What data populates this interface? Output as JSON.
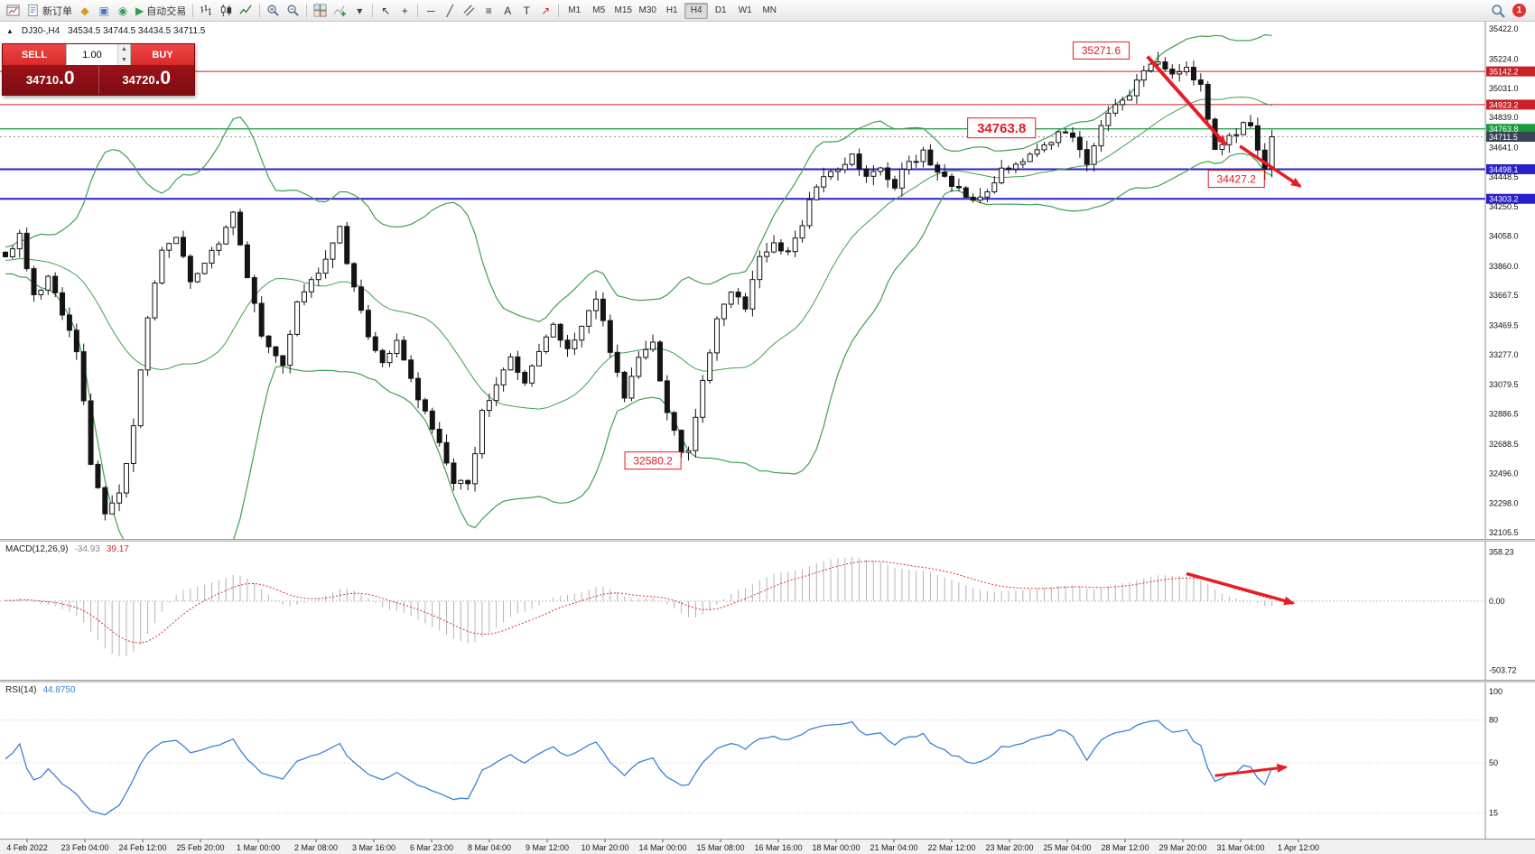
{
  "toolbar": {
    "buttons": [
      {
        "name": "chart-window-icon",
        "icon": "chart"
      },
      {
        "name": "new-order-button",
        "icon": "doc",
        "label": "新订单"
      },
      {
        "name": "market-watch-icon",
        "glyph": "◆",
        "color": "#d69a1e"
      },
      {
        "name": "data-window-icon",
        "glyph": "▣",
        "color": "#4a78c8"
      },
      {
        "name": "navigator-icon",
        "glyph": "◉",
        "color": "#3a9e5f"
      },
      {
        "name": "auto-trading-button",
        "glyph": "▶",
        "color": "#28a24c",
        "label": "自动交易"
      },
      {
        "separator": true
      },
      {
        "name": "bar-chart-icon",
        "icon": "bars"
      },
      {
        "name": "candlestick-chart-icon",
        "icon": "candles"
      },
      {
        "name": "line-chart-icon",
        "icon": "line"
      },
      {
        "separator": true
      },
      {
        "name": "zoom-in-icon",
        "icon": "zoomin"
      },
      {
        "name": "zoom-out-icon",
        "icon": "zoomout"
      },
      {
        "separator": true
      },
      {
        "name": "tile-windows-icon",
        "icon": "tile"
      },
      {
        "name": "indicators-icon",
        "icon": "indicators"
      },
      {
        "name": "indicators-dropdown-icon",
        "glyph": "▾",
        "color": "#444"
      },
      {
        "separator": true
      },
      {
        "name": "cursor-icon",
        "glyph": "↖",
        "color": "#333"
      },
      {
        "name": "crosshair-icon",
        "glyph": "+",
        "color": "#333"
      },
      {
        "separator": true
      },
      {
        "name": "horizontal-line-icon",
        "glyph": "─",
        "color": "#333"
      },
      {
        "name": "trendline-icon",
        "glyph": "╱",
        "color": "#333"
      },
      {
        "name": "channel-icon",
        "icon": "channel"
      },
      {
        "name": "fibonacci-icon",
        "glyph": "≡",
        "color": "#333"
      },
      {
        "name": "text-icon",
        "glyph": "A",
        "color": "#333"
      },
      {
        "name": "label-icon",
        "glyph": "T",
        "color": "#333"
      },
      {
        "name": "arrows-icon",
        "glyph": "↗",
        "color": "#c13333"
      },
      {
        "separator": true
      }
    ],
    "timeframes": [
      "M1",
      "M5",
      "M15",
      "M30",
      "H1",
      "H4",
      "D1",
      "W1",
      "MN"
    ],
    "active_timeframe": "H4",
    "notification_count": "1"
  },
  "chart": {
    "collapse_icon": "▲",
    "symbol_info": "DJ30-,H4",
    "ohlc_info": "34534.5 34744.5 34434.5 34711.5",
    "trade_panel": {
      "sell_label": "SELL",
      "buy_label": "BUY",
      "volume": "1.00",
      "sell_price": "34710.0",
      "buy_price": "34720.0"
    }
  },
  "chart_data": {
    "type": "candlestick",
    "symbol": "DJ30-",
    "period": "H4",
    "ylim": [
      32105.5,
      35422.0
    ],
    "num_candles": 179,
    "current_price": 34711.5,
    "price_axis_labels": [
      "35422.0",
      "35224.0",
      "35031.0",
      "34839.0",
      "34641.0",
      "34448.5",
      "34250.5",
      "34058.0",
      "33860.0",
      "33667.5",
      "33469.5",
      "33277.0",
      "33079.5",
      "32886.5",
      "32688.5",
      "32496.0",
      "32298.0",
      "32105.5"
    ],
    "price_tags": [
      {
        "value": "35142.2",
        "color": "#c92127"
      },
      {
        "value": "34923.2",
        "color": "#c92127"
      },
      {
        "value": "34763.8",
        "color": "#169a3a"
      },
      {
        "value": "34711.5",
        "color": "#3a4257"
      },
      {
        "value": "34498.1",
        "color": "#2a1fc8"
      },
      {
        "value": "34303.2",
        "color": "#2a1fc8"
      }
    ],
    "hlines": [
      {
        "price": 35142.2,
        "color": "#c92127",
        "width": 1
      },
      {
        "price": 34923.2,
        "color": "#c92127",
        "width": 1
      },
      {
        "price": 34763.8,
        "color": "#169a3a",
        "width": 1.3
      },
      {
        "price": 34498.1,
        "color": "#2a1fc8",
        "width": 2
      },
      {
        "price": 34303.2,
        "color": "#2a1fc8",
        "width": 2
      }
    ],
    "bollinger": {
      "period": 20,
      "deviation": 2,
      "color": "#3fa050"
    },
    "candle_colors": {
      "bull": "#ffffff",
      "bear": "#141414",
      "outline": "#141414"
    },
    "price_keyframes": [
      [
        0,
        33900
      ],
      [
        2,
        34050
      ],
      [
        4,
        33650
      ],
      [
        6,
        33800
      ],
      [
        8,
        33550
      ],
      [
        10,
        33300
      ],
      [
        11,
        33000
      ],
      [
        12,
        32550
      ],
      [
        13,
        32400
      ],
      [
        14,
        32250
      ],
      [
        16,
        32350
      ],
      [
        18,
        32800
      ],
      [
        20,
        33500
      ],
      [
        22,
        33950
      ],
      [
        24,
        34050
      ],
      [
        26,
        33750
      ],
      [
        28,
        33900
      ],
      [
        30,
        34000
      ],
      [
        32,
        34200
      ],
      [
        34,
        33800
      ],
      [
        36,
        33400
      ],
      [
        39,
        33200
      ],
      [
        41,
        33600
      ],
      [
        43,
        33750
      ],
      [
        45,
        33900
      ],
      [
        47,
        34100
      ],
      [
        49,
        33700
      ],
      [
        51,
        33400
      ],
      [
        53,
        33200
      ],
      [
        55,
        33350
      ],
      [
        57,
        33100
      ],
      [
        59,
        32900
      ],
      [
        61,
        32700
      ],
      [
        63,
        32450
      ],
      [
        65,
        32400
      ],
      [
        67,
        32900
      ],
      [
        69,
        33100
      ],
      [
        71,
        33250
      ],
      [
        73,
        33100
      ],
      [
        75,
        33300
      ],
      [
        77,
        33450
      ],
      [
        79,
        33300
      ],
      [
        81,
        33450
      ],
      [
        83,
        33650
      ],
      [
        85,
        33300
      ],
      [
        87,
        33000
      ],
      [
        89,
        33250
      ],
      [
        91,
        33350
      ],
      [
        93,
        32900
      ],
      [
        95,
        32650
      ],
      [
        96,
        32620
      ],
      [
        98,
        33100
      ],
      [
        100,
        33500
      ],
      [
        102,
        33700
      ],
      [
        104,
        33600
      ],
      [
        106,
        33900
      ],
      [
        108,
        34000
      ],
      [
        110,
        33950
      ],
      [
        112,
        34150
      ],
      [
        114,
        34400
      ],
      [
        117,
        34500
      ],
      [
        119,
        34600
      ],
      [
        121,
        34450
      ],
      [
        123,
        34500
      ],
      [
        125,
        34400
      ],
      [
        127,
        34550
      ],
      [
        129,
        34600
      ],
      [
        131,
        34500
      ],
      [
        133,
        34400
      ],
      [
        136,
        34300
      ],
      [
        138,
        34350
      ],
      [
        140,
        34500
      ],
      [
        142,
        34550
      ],
      [
        144,
        34600
      ],
      [
        146,
        34650
      ],
      [
        148,
        34750
      ],
      [
        150,
        34700
      ],
      [
        152,
        34550
      ],
      [
        154,
        34800
      ],
      [
        156,
        34900
      ],
      [
        158,
        35000
      ],
      [
        160,
        35150
      ],
      [
        162,
        35220
      ],
      [
        164,
        35100
      ],
      [
        166,
        35150
      ],
      [
        168,
        35050
      ],
      [
        170,
        34650
      ],
      [
        172,
        34700
      ],
      [
        174,
        34800
      ],
      [
        175,
        34780
      ],
      [
        176,
        34650
      ],
      [
        177,
        34480
      ],
      [
        178,
        34711.5
      ]
    ],
    "key_points": [
      {
        "candle": 162,
        "type": "high",
        "price": 35271.6
      },
      {
        "candle": 96,
        "type": "low",
        "price": 32580.2
      },
      {
        "candle": 177,
        "type": "low",
        "price": 34427.2
      }
    ],
    "annotations": {
      "color": "#e81c24",
      "price_labels": [
        {
          "text": "35271.6",
          "candle": 154,
          "price": 35280,
          "size": 12
        },
        {
          "text": "34763.8",
          "candle": 140,
          "price": 34770,
          "size": 15
        },
        {
          "text": "34427.2",
          "candle": 173,
          "price": 34435,
          "size": 12
        },
        {
          "text": "32580.2",
          "candle": 91,
          "price": 32580,
          "size": 12
        }
      ],
      "arrows": [
        {
          "pane": "main",
          "from": [
            160.5,
            35240
          ],
          "to": [
            171.5,
            34660
          ],
          "width": 4
        },
        {
          "pane": "main",
          "from": [
            173.5,
            34650
          ],
          "to": [
            182,
            34385
          ],
          "width": 3.5
        },
        {
          "pane": "macd",
          "from": [
            166,
            200
          ],
          "to": [
            181,
            -15
          ],
          "width": 3.5
        },
        {
          "pane": "rsi",
          "from": [
            170,
            41
          ],
          "to": [
            180,
            47
          ],
          "width": 3
        }
      ]
    },
    "macd": {
      "label": "MACD(12,26,9)",
      "value_main": "-34.93",
      "value_signal": "39.17",
      "axis": [
        "358.23",
        "0.00",
        "-503.72"
      ],
      "ylim": [
        -520,
        380
      ],
      "histogram_color": "#b5b5b5",
      "signal_color": "#e03030"
    },
    "rsi": {
      "label": "RSI(14)",
      "value": "44.8750",
      "axis": [
        "100",
        "80",
        "50",
        "15"
      ],
      "levels": [
        80,
        50,
        15
      ],
      "color": "#3b82d4"
    },
    "time_axis": [
      "4 Feb 2022",
      "23 Feb 04:00",
      "24 Feb 12:00",
      "25 Feb 20:00",
      "1 Mar 00:00",
      "2 Mar 08:00",
      "3 Mar 16:00",
      "6 Mar 23:00",
      "8 Mar 04:00",
      "9 Mar 12:00",
      "10 Mar 20:00",
      "14 Mar 00:00",
      "15 Mar 08:00",
      "16 Mar 16:00",
      "18 Mar 00:00",
      "21 Mar 04:00",
      "22 Mar 12:00",
      "23 Mar 20:00",
      "25 Mar 04:00",
      "28 Mar 12:00",
      "29 Mar 20:00",
      "31 Mar 04:00",
      "1 Apr 12:00"
    ]
  }
}
